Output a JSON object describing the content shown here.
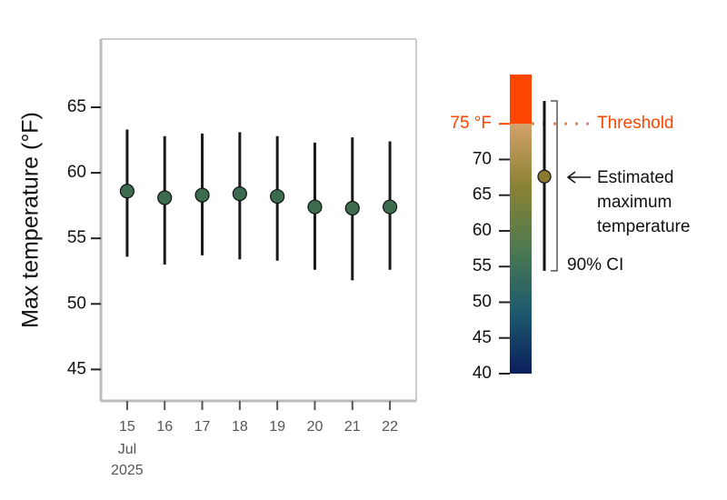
{
  "chart_data": {
    "type": "errorbar",
    "y_label": "Max temperature (°F)",
    "categories": [
      "15",
      "16",
      "17",
      "18",
      "19",
      "20",
      "21",
      "22"
    ],
    "x_month": "Jul",
    "x_year": "2025",
    "series": [
      {
        "color": "#3d6b4f",
        "values": [
          58.6,
          58.1,
          58.3,
          58.4,
          58.2,
          57.4,
          57.3,
          57.4
        ],
        "lower": [
          53.6,
          53.0,
          53.7,
          53.4,
          53.3,
          52.6,
          51.8,
          52.6
        ],
        "upper": [
          63.3,
          62.8,
          63.0,
          63.1,
          62.8,
          62.3,
          62.7,
          62.4
        ]
      }
    ],
    "ylim": [
      42.6,
      70.2
    ],
    "yticks": [
      45,
      50,
      55,
      60,
      65
    ],
    "legend": {
      "ylim": [
        40,
        81.9
      ],
      "yticks": [
        40,
        45,
        50,
        55,
        60,
        65,
        70,
        {
          "value": 75,
          "label": "75 °F"
        }
      ],
      "threshold": 75,
      "threshold_label": "Threshold",
      "threshold_color": "#ff4500",
      "colors": [
        "#0a1f5c",
        "#1d5a6e",
        "#4d7a4e",
        "#8a8233",
        "#d4a16a"
      ],
      "example_value": 67.6,
      "example_lower": 54.4,
      "example_upper": 78.2,
      "example_color": "#8a7a30",
      "estimate_label": [
        "Estimated",
        "maximum",
        "temperature"
      ],
      "ci_label": "90% CI"
    }
  }
}
